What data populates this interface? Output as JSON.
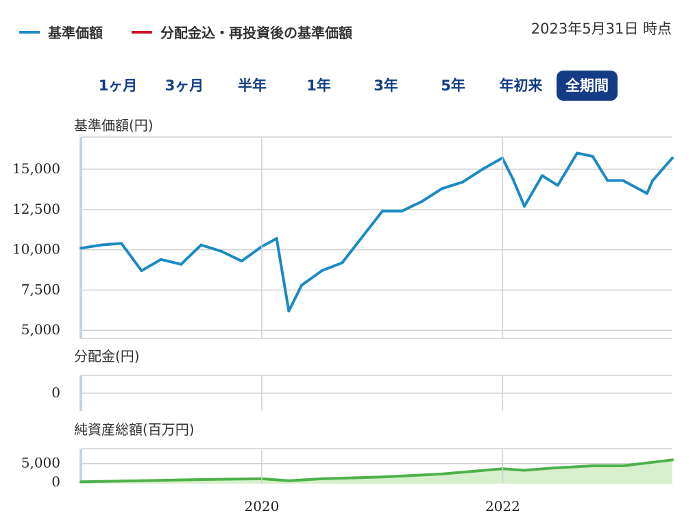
{
  "legend": [
    {
      "label": "基準価額",
      "color": "#1a8ac4"
    },
    {
      "label": "分配金込・再投資後の基準価額",
      "color": "#cc1122"
    }
  ],
  "as_of": "2023年5月31日 時点",
  "tabs": [
    {
      "label": "1ヶ月",
      "active": false
    },
    {
      "label": "3ヶ月",
      "active": false
    },
    {
      "label": "半年",
      "active": false
    },
    {
      "label": "1年",
      "active": false
    },
    {
      "label": "3年",
      "active": false
    },
    {
      "label": "5年",
      "active": false
    },
    {
      "label": "年初来",
      "active": false
    },
    {
      "label": "全期間",
      "active": true
    }
  ],
  "colors": {
    "nav": "#1a8ac4",
    "assets": "#4db14a",
    "assets_fill": "#d6f0cc",
    "tab_active": "#143c86",
    "grid": "#d0d0d0"
  },
  "chart_data": [
    {
      "type": "line",
      "title": "基準価額(円)",
      "series": [
        {
          "name": "基準価額",
          "x": [
            "2018-07-01",
            "2018-09-01",
            "2018-11-01",
            "2019-01-01",
            "2019-03-01",
            "2019-05-01",
            "2019-07-01",
            "2019-09-01",
            "2019-11-01",
            "2020-01-01",
            "2020-02-15",
            "2020-03-23",
            "2020-05-01",
            "2020-07-01",
            "2020-09-01",
            "2020-11-01",
            "2021-01-01",
            "2021-03-01",
            "2021-05-01",
            "2021-07-01",
            "2021-09-01",
            "2021-11-01",
            "2021-12-31",
            "2022-02-01",
            "2022-03-08",
            "2022-05-01",
            "2022-06-17",
            "2022-08-15",
            "2022-10-01",
            "2022-11-15",
            "2023-01-01",
            "2023-03-15",
            "2023-04-01",
            "2023-05-31"
          ],
          "values": [
            10100,
            10300,
            10400,
            8700,
            9400,
            9100,
            10300,
            9900,
            9300,
            10200,
            10700,
            6200,
            7800,
            8700,
            9200,
            10800,
            12400,
            12400,
            13000,
            13800,
            14200,
            15000,
            15700,
            14400,
            12700,
            14600,
            14000,
            16000,
            15800,
            14300,
            14300,
            13500,
            14300,
            15700
          ]
        }
      ],
      "xticks": [
        "2020",
        "2022"
      ],
      "yticks": [
        5000,
        7500,
        10000,
        12500,
        15000
      ],
      "ytick_labels": [
        "5,000",
        "7,500",
        "10,000",
        "12,500",
        "15,000"
      ],
      "xlim": [
        "2018-07-01",
        "2023-05-31"
      ],
      "ylim": [
        4500,
        17000
      ],
      "grid": true
    },
    {
      "type": "bar",
      "title": "分配金(円)",
      "series": [
        {
          "name": "分配金",
          "values": []
        }
      ],
      "yticks": [
        0
      ],
      "ytick_labels": [
        "0"
      ],
      "ylim": [
        -1,
        1
      ],
      "grid": true
    },
    {
      "type": "area",
      "title": "純資産総額(百万円)",
      "series": [
        {
          "name": "純資産総額",
          "x": [
            "2018-07-01",
            "2019-01-01",
            "2019-07-01",
            "2020-01-01",
            "2020-03-23",
            "2020-07-01",
            "2021-01-01",
            "2021-07-01",
            "2022-01-01",
            "2022-03-08",
            "2022-06-01",
            "2022-10-01",
            "2023-01-01",
            "2023-05-31"
          ],
          "values": [
            100,
            400,
            700,
            900,
            400,
            900,
            1400,
            2200,
            3600,
            3200,
            3800,
            4400,
            4400,
            6000
          ]
        }
      ],
      "yticks": [
        0,
        5000
      ],
      "ytick_labels": [
        "0",
        "5,000"
      ],
      "ylim": [
        -400,
        9000
      ],
      "grid": true
    }
  ]
}
